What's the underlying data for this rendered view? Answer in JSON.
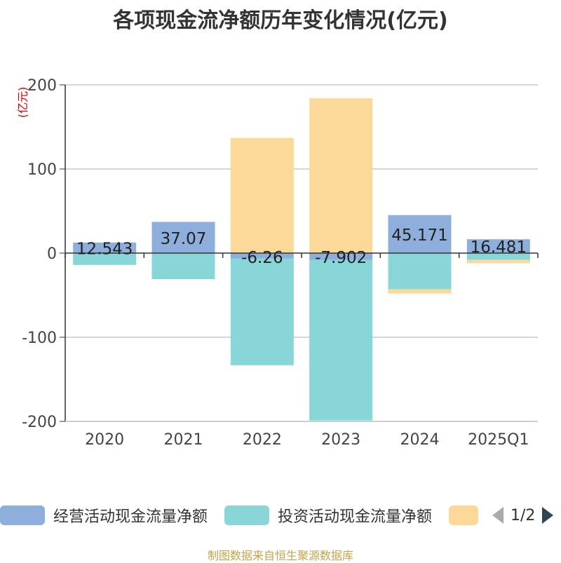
{
  "chart_data": {
    "type": "bar",
    "title": "各项现金流净额历年变化情况(亿元)",
    "ylabel": "(亿元)",
    "ylim": [
      -200,
      200
    ],
    "yticks": [
      200,
      100,
      0,
      -100,
      -200
    ],
    "categories": [
      "2020",
      "2021",
      "2022",
      "2023",
      "2024",
      "2025Q1"
    ],
    "series": [
      {
        "name": "经营活动现金流量净额",
        "color": "#8eaedb",
        "values": [
          12.543,
          37.07,
          -6.26,
          -7.902,
          45.171,
          16.481
        ]
      },
      {
        "name": "投资活动现金流量净额",
        "color": "#88d6d8",
        "values": [
          -14,
          -31,
          -127,
          -191,
          -43,
          -8
        ]
      },
      {
        "name": "",
        "color": "#fdd999",
        "values": [
          0,
          0,
          137,
          184,
          -5,
          -4
        ]
      }
    ],
    "data_labels": [
      "12.543",
      "37.07",
      "-6.26",
      "-7.902",
      "45.171",
      "16.481"
    ]
  },
  "legend": {
    "items": [
      "经营活动现金流量净额",
      "投资活动现金流量净额",
      ""
    ],
    "page": "1/2"
  },
  "source": "制图数据来自恒生聚源数据库"
}
